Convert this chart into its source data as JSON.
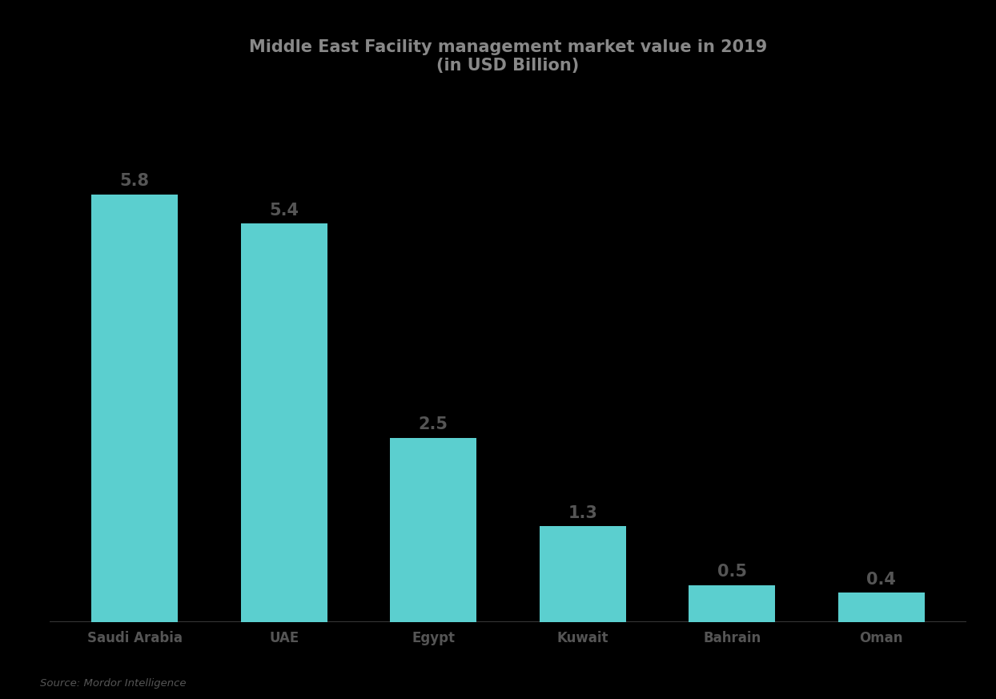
{
  "title_line1": "Middle East Facility management market value in 2019",
  "title_line2": "(in USD Billion)",
  "categories": [
    "Saudi Arabia",
    "UAE",
    "Egypt",
    "Kuwait",
    "Bahrain",
    "Oman"
  ],
  "values": [
    5.8,
    5.4,
    2.5,
    1.3,
    0.5,
    0.4
  ],
  "bar_color": "#5BCFCF",
  "background_color": "#000000",
  "plot_bg_color": "#000000",
  "title_color": "#888888",
  "label_color": "#555555",
  "value_color": "#555555",
  "source_text": "Source: Mordor Intelligence",
  "bar_width": 0.58,
  "ylim": [
    0,
    7.2
  ],
  "title_fontsize": 15,
  "label_fontsize": 12,
  "value_fontsize": 15
}
